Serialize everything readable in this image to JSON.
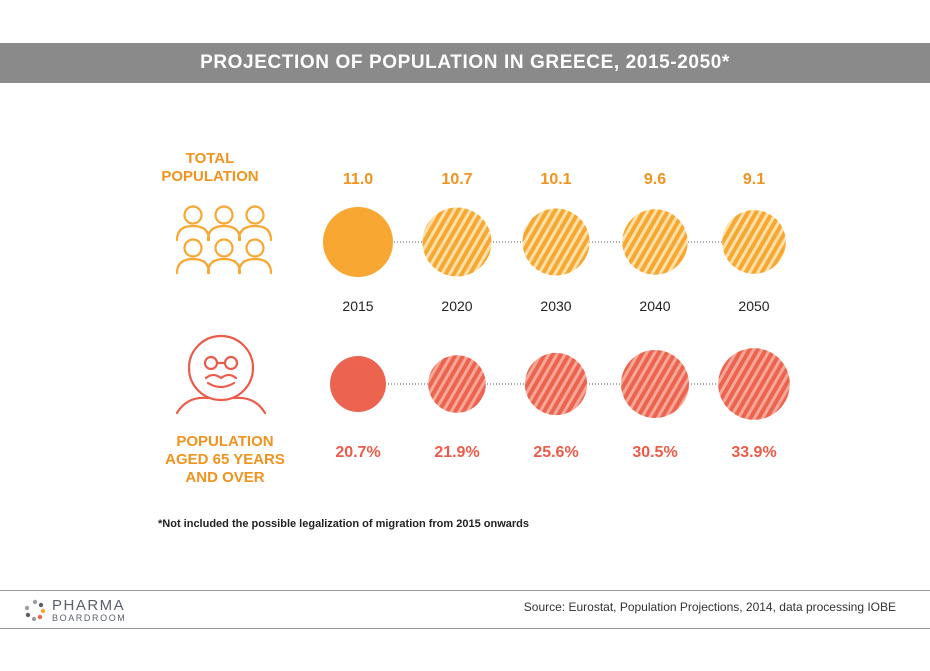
{
  "title": "PROJECTION OF POPULATION IN GREECE, 2015-2050*",
  "labels": {
    "total_line1": "TOTAL",
    "total_line2": "POPULATION",
    "aged_line1": "POPULATION",
    "aged_line2": "AGED 65 YEARS",
    "aged_line3": "AND OVER"
  },
  "footnote": "*Not included the possible legalization of migration from 2015 onwards",
  "source": "Source: Eurostat, Population Projections, 2014, data processing IOBE",
  "logo": {
    "line1": "PHARMA",
    "line2": "BOARDROOM"
  },
  "icons": {
    "total": "people-group-icon",
    "aged": "elderly-person-icon",
    "logo": "pharma-boardroom-logo-icon"
  },
  "colors": {
    "title_bar": "#8a8a8a",
    "total": "#f8a733",
    "total_stripe": "#fce2a8",
    "total_label": "#f0931f",
    "aged": "#ec6450",
    "aged_stripe": "#f6a898",
    "aged_label": "#ea5b49"
  },
  "chart_data": {
    "type": "bubble",
    "categories": [
      "2015",
      "2020",
      "2030",
      "2040",
      "2050"
    ],
    "series": [
      {
        "name": "TOTAL POPULATION",
        "values": [
          11.0,
          10.7,
          10.1,
          9.6,
          9.1
        ],
        "labels": [
          "11.0",
          "10.7",
          "10.1",
          "9.6",
          "9.1"
        ]
      },
      {
        "name": "POPULATION AGED 65 YEARS AND OVER",
        "values": [
          20.7,
          21.9,
          25.6,
          30.5,
          33.9
        ],
        "labels": [
          "20.7%",
          "21.9%",
          "25.6%",
          "30.5%",
          "33.9%"
        ]
      }
    ]
  }
}
